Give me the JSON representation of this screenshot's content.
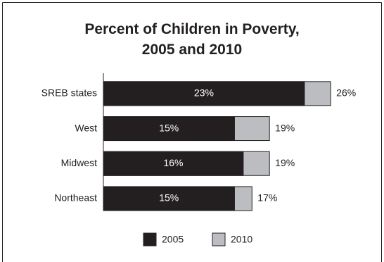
{
  "chart_data": {
    "type": "bar",
    "orientation": "horizontal",
    "overlap": true,
    "title": "Percent of Children in Poverty,\n2005 and 2010",
    "categories": [
      "SREB states",
      "West",
      "Midwest",
      "Northeast"
    ],
    "series": [
      {
        "name": "2005",
        "color": "#231f20",
        "values": [
          23,
          15,
          16,
          15
        ],
        "value_labels": [
          "23%",
          "15%",
          "16%",
          "15%"
        ]
      },
      {
        "name": "2010",
        "color": "#bcbdc0",
        "values": [
          26,
          19,
          19,
          17
        ],
        "value_labels": [
          "26%",
          "19%",
          "19%",
          "17%"
        ]
      }
    ],
    "legend": "bottom"
  }
}
